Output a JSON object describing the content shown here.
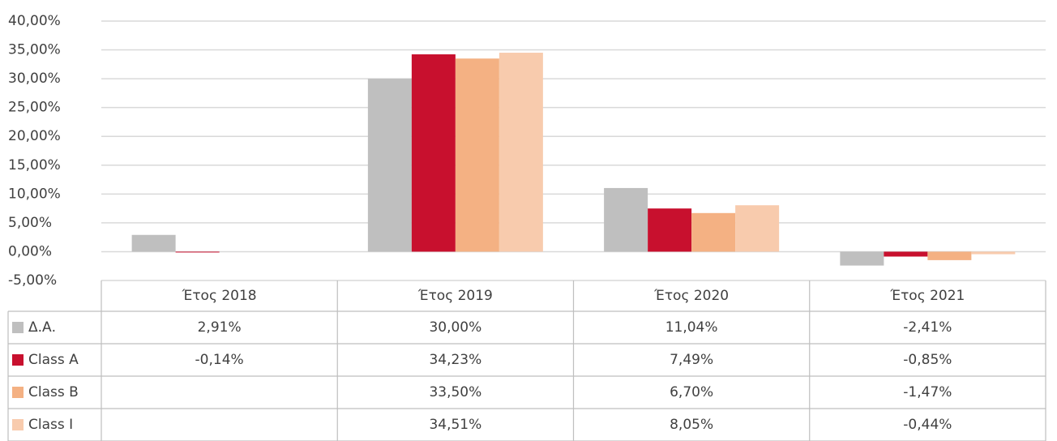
{
  "chart_data": {
    "type": "bar",
    "categories": [
      "Έτος 2018",
      "Έτος 2019",
      "Έτος 2020",
      "Έτος 2021"
    ],
    "series": [
      {
        "name": "Δ.Α.",
        "color": "#bfbfbf",
        "values": [
          2.91,
          30.0,
          11.04,
          -2.41
        ],
        "value_labels": [
          "2,91%",
          "30,00%",
          "11,04%",
          "-2,41%"
        ]
      },
      {
        "name": "Class A",
        "color": "#c8102e",
        "values": [
          -0.14,
          34.23,
          7.49,
          -0.85
        ],
        "value_labels": [
          "-0,14%",
          "34,23%",
          "7,49%",
          "-0,85%"
        ]
      },
      {
        "name": "Class B",
        "color": "#f4b183",
        "values": [
          null,
          33.5,
          6.7,
          -1.47
        ],
        "value_labels": [
          null,
          "33,50%",
          "6,70%",
          "-1,47%"
        ]
      },
      {
        "name": "Class I",
        "color": "#f8cbad",
        "values": [
          null,
          34.51,
          8.05,
          -0.44
        ],
        "value_labels": [
          null,
          "34,51%",
          "8,05%",
          "-0,44%"
        ]
      }
    ],
    "ylim": [
      -5,
      40
    ],
    "yticks": [
      {
        "value": 40,
        "label": "40,00%"
      },
      {
        "value": 35,
        "label": "35,00%"
      },
      {
        "value": 30,
        "label": "30,00%"
      },
      {
        "value": 25,
        "label": "25,00%"
      },
      {
        "value": 20,
        "label": "20,00%"
      },
      {
        "value": 15,
        "label": "15,00%"
      },
      {
        "value": 10,
        "label": "10,00%"
      },
      {
        "value": 5,
        "label": "5,00%"
      },
      {
        "value": 0,
        "label": "0,00%"
      },
      {
        "value": -5,
        "label": "-5,00%"
      }
    ],
    "grid": true
  }
}
